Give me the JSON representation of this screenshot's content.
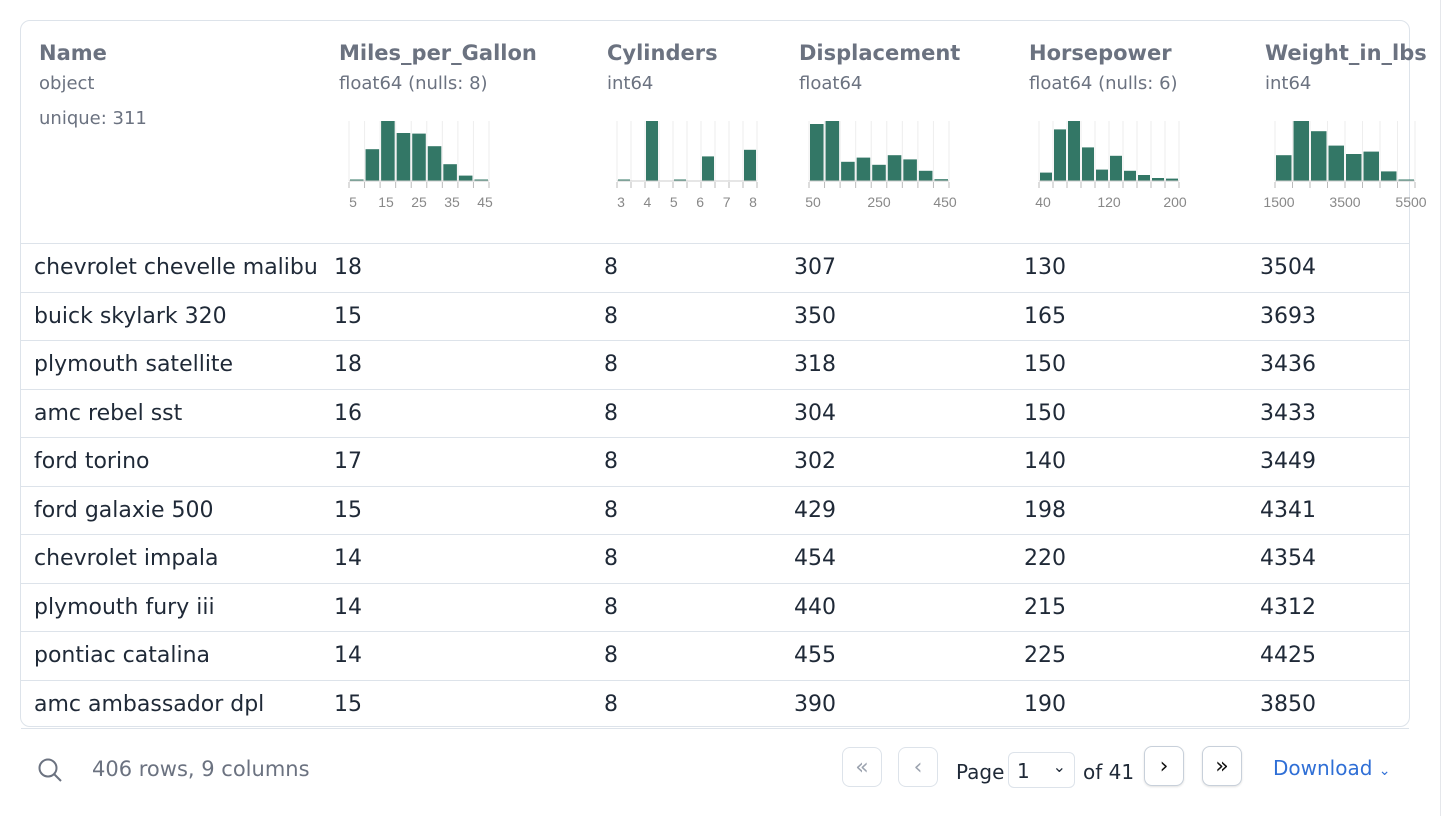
{
  "columns": [
    {
      "name": "Name",
      "type": "object",
      "unique": "unique: 311"
    },
    {
      "name": "Miles_per_Gallon",
      "type": "float64 (nulls: 8)",
      "hist": [
        0.02,
        0.53,
        1.0,
        0.8,
        0.79,
        0.58,
        0.28,
        0.09,
        0.02
      ],
      "ticks": [
        "5",
        "15",
        "25",
        "35",
        "45"
      ]
    },
    {
      "name": "Cylinders",
      "type": "int64",
      "hist": [
        0.02,
        0,
        1.0,
        0,
        0.02,
        0,
        0.41,
        0,
        0,
        0.52
      ],
      "ticks": [
        "3",
        "4",
        "5",
        "6",
        "7",
        "8"
      ]
    },
    {
      "name": "Displacement",
      "type": "float64",
      "hist": [
        0.95,
        1.0,
        0.32,
        0.39,
        0.27,
        0.43,
        0.36,
        0.17,
        0.03
      ],
      "ticks": [
        "50",
        "250",
        "450"
      ]
    },
    {
      "name": "Horsepower",
      "type": "float64 (nulls: 6)",
      "hist": [
        0.14,
        0.86,
        1.0,
        0.56,
        0.19,
        0.42,
        0.17,
        0.1,
        0.05,
        0.04
      ],
      "ticks": [
        "40",
        "120",
        "200"
      ]
    },
    {
      "name": "Weight_in_lbs",
      "type": "int64",
      "hist": [
        0.43,
        1.0,
        0.83,
        0.59,
        0.45,
        0.49,
        0.16,
        0.02
      ],
      "ticks": [
        "1500",
        "3500",
        "5500"
      ]
    }
  ],
  "rows": [
    [
      "chevrolet chevelle malibu",
      "18",
      "8",
      "307",
      "130",
      "3504"
    ],
    [
      "buick skylark 320",
      "15",
      "8",
      "350",
      "165",
      "3693"
    ],
    [
      "plymouth satellite",
      "18",
      "8",
      "318",
      "150",
      "3436"
    ],
    [
      "amc rebel sst",
      "16",
      "8",
      "304",
      "150",
      "3433"
    ],
    [
      "ford torino",
      "17",
      "8",
      "302",
      "140",
      "3449"
    ],
    [
      "ford galaxie 500",
      "15",
      "8",
      "429",
      "198",
      "4341"
    ],
    [
      "chevrolet impala",
      "14",
      "8",
      "454",
      "220",
      "4354"
    ],
    [
      "plymouth fury iii",
      "14",
      "8",
      "440",
      "215",
      "4312"
    ],
    [
      "pontiac catalina",
      "14",
      "8",
      "455",
      "225",
      "4425"
    ],
    [
      "amc ambassador dpl",
      "15",
      "8",
      "390",
      "190",
      "3850"
    ]
  ],
  "footer": {
    "summary": "406 rows, 9 columns",
    "page_label": "Page",
    "page": "1",
    "of_label": "of 41",
    "download": "Download"
  },
  "colors": {
    "bar": "#337766",
    "accent": "#2f6fd6"
  }
}
